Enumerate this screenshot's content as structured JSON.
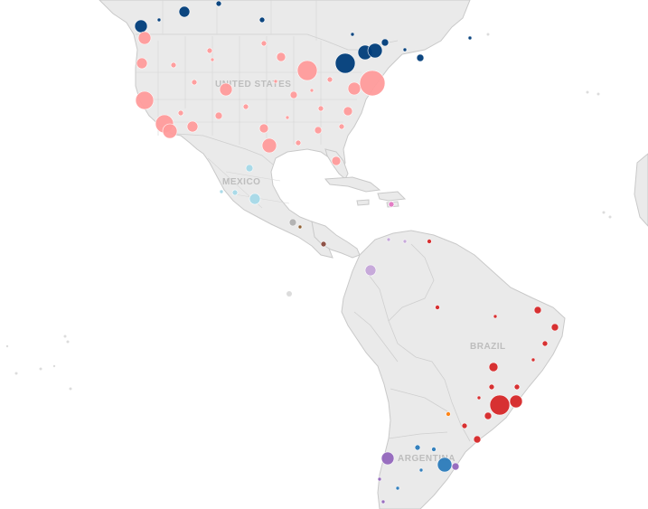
{
  "map": {
    "country_labels": {
      "usa": "UNITED STATES",
      "mexico": "MEXICO",
      "brazil": "BRAZIL",
      "argentina": "ARGENTINA"
    },
    "colors": {
      "canada": "#003d7a",
      "usa": "#ff9b9b",
      "mexico": "#a6d9e8",
      "guatemala": "#b0b0b0",
      "el_salvador": "#8b5a2b",
      "honduras": "#8a4b3f",
      "puerto_rico": "#e377c2",
      "colombia": "#c5a6d9",
      "venezuela": "#d62728",
      "brazil": "#d62728",
      "argentina": "#2b7bba",
      "chile": "#9467bd",
      "uruguay": "#9467bd",
      "paraguay": "#ff7f0e"
    }
  }
}
